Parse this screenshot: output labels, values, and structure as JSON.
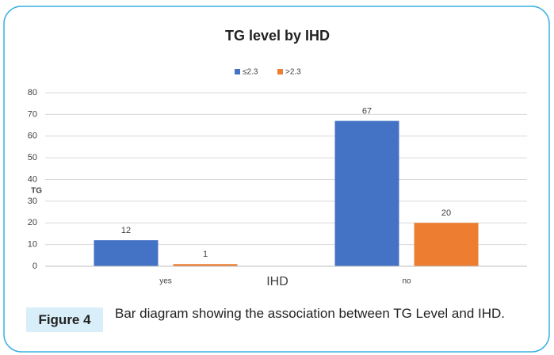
{
  "chart_data": {
    "type": "bar",
    "title": "TG level by IHD",
    "categories": [
      "yes",
      "no"
    ],
    "series": [
      {
        "name": "≤2.3",
        "color": "#4472c4",
        "values": [
          12,
          67
        ]
      },
      {
        "name": ">2.3",
        "color": "#ed7d31",
        "values": [
          1,
          20
        ]
      }
    ],
    "ylabel": "TG",
    "xlabel": "IHD",
    "ylim": [
      0,
      80
    ],
    "yticks": [
      0,
      10,
      20,
      30,
      40,
      50,
      60,
      70,
      80
    ],
    "grid": true,
    "legend": "top"
  },
  "caption": {
    "label": "Figure 4",
    "text": "Bar diagram showing the association between TG Level and IHD."
  }
}
